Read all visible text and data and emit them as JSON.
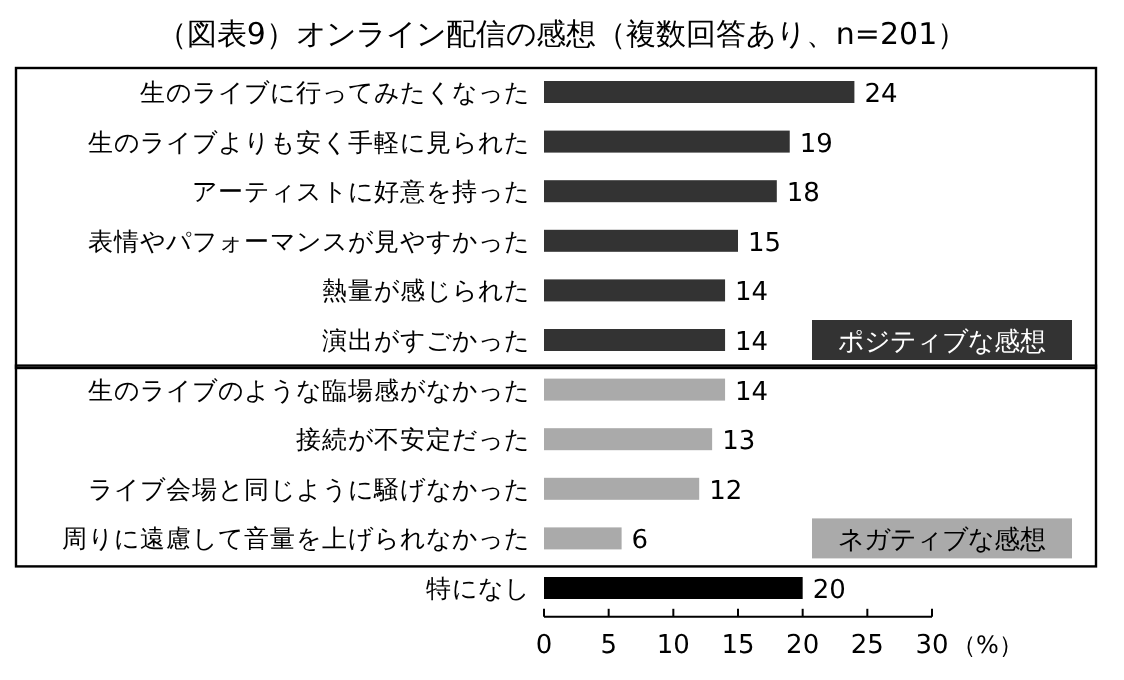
{
  "chart_data": {
    "type": "bar",
    "orientation": "horizontal",
    "title": "（図表9）オンライン配信の感想（複数回答あり、n=201）",
    "categories": [
      "生のライブに行ってみたくなった",
      "生のライブよりも安く手軽に見られた",
      "アーティストに好意を持った",
      "表情やパフォーマンスが見やすかった",
      "熱量が感じられた",
      "演出がすごかった",
      "生のライブのような臨場感がなかった",
      "接続が不安定だった",
      "ライブ会場と同じように騒げなかった",
      "周りに遠慮して音量を上げられなかった",
      "特になし"
    ],
    "values": [
      24,
      19,
      18,
      15,
      14,
      14,
      14,
      13,
      12,
      6,
      20
    ],
    "colors": [
      "#333333",
      "#333333",
      "#333333",
      "#333333",
      "#333333",
      "#333333",
      "#aaaaaa",
      "#aaaaaa",
      "#aaaaaa",
      "#aaaaaa",
      "#000000"
    ],
    "xlim": [
      0,
      30
    ],
    "xticks": [
      0,
      5,
      10,
      15,
      20,
      25,
      30
    ],
    "xlabel": "（%）",
    "data_labels": true,
    "grid": false,
    "annotations": [
      "ポジティブな感想",
      "ネガティブな感想"
    ]
  }
}
